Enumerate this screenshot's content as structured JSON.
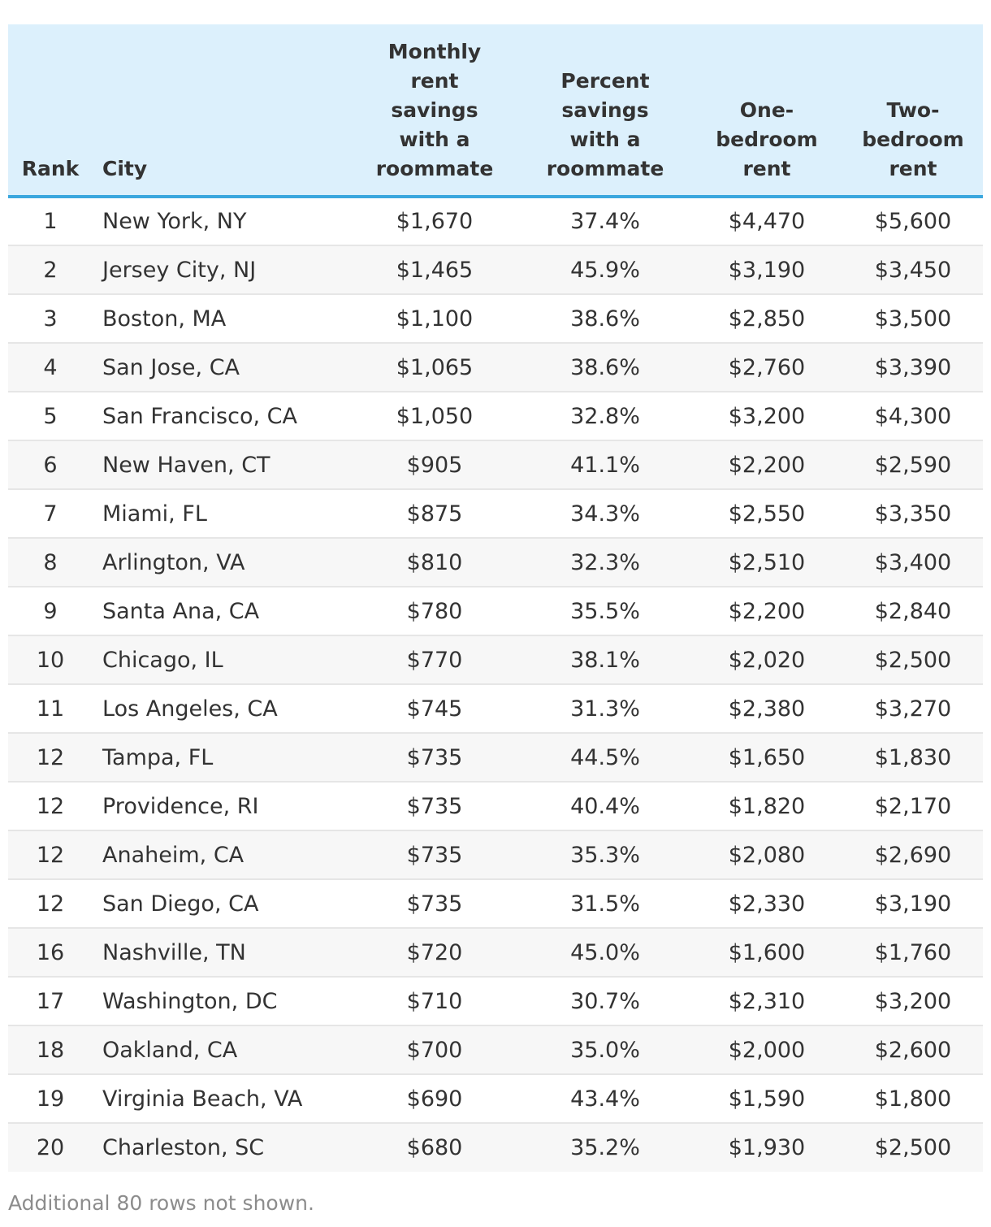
{
  "chart_data": {
    "type": "table",
    "columns": [
      "Rank",
      "City",
      "Monthly rent savings with a roommate",
      "Percent savings with a roommate",
      "One-bedroom rent",
      "Two-bedroom rent"
    ],
    "rows": [
      [
        "1",
        "New York, NY",
        "$1,670",
        "37.4%",
        "$4,470",
        "$5,600"
      ],
      [
        "2",
        "Jersey City, NJ",
        "$1,465",
        "45.9%",
        "$3,190",
        "$3,450"
      ],
      [
        "3",
        "Boston, MA",
        "$1,100",
        "38.6%",
        "$2,850",
        "$3,500"
      ],
      [
        "4",
        "San Jose, CA",
        "$1,065",
        "38.6%",
        "$2,760",
        "$3,390"
      ],
      [
        "5",
        "San Francisco, CA",
        "$1,050",
        "32.8%",
        "$3,200",
        "$4,300"
      ],
      [
        "6",
        "New Haven, CT",
        "$905",
        "41.1%",
        "$2,200",
        "$2,590"
      ],
      [
        "7",
        "Miami, FL",
        "$875",
        "34.3%",
        "$2,550",
        "$3,350"
      ],
      [
        "8",
        "Arlington, VA",
        "$810",
        "32.3%",
        "$2,510",
        "$3,400"
      ],
      [
        "9",
        "Santa Ana, CA",
        "$780",
        "35.5%",
        "$2,200",
        "$2,840"
      ],
      [
        "10",
        "Chicago, IL",
        "$770",
        "38.1%",
        "$2,020",
        "$2,500"
      ],
      [
        "11",
        "Los Angeles, CA",
        "$745",
        "31.3%",
        "$2,380",
        "$3,270"
      ],
      [
        "12",
        "Tampa, FL",
        "$735",
        "44.5%",
        "$1,650",
        "$1,830"
      ],
      [
        "12",
        "Providence, RI",
        "$735",
        "40.4%",
        "$1,820",
        "$2,170"
      ],
      [
        "12",
        "Anaheim, CA",
        "$735",
        "35.3%",
        "$2,080",
        "$2,690"
      ],
      [
        "12",
        "San Diego, CA",
        "$735",
        "31.5%",
        "$2,330",
        "$3,190"
      ],
      [
        "16",
        "Nashville, TN",
        "$720",
        "45.0%",
        "$1,600",
        "$1,760"
      ],
      [
        "17",
        "Washington, DC",
        "$710",
        "30.7%",
        "$2,310",
        "$3,200"
      ],
      [
        "18",
        "Oakland, CA",
        "$700",
        "35.0%",
        "$2,000",
        "$2,600"
      ],
      [
        "19",
        "Virginia Beach, VA",
        "$690",
        "43.4%",
        "$1,590",
        "$1,800"
      ],
      [
        "20",
        "Charleston, SC",
        "$680",
        "35.2%",
        "$1,930",
        "$2,500"
      ]
    ]
  },
  "header": {
    "rank": "Rank",
    "city": "City",
    "savings": [
      "Monthly",
      "rent",
      "savings",
      "with a",
      "roommate"
    ],
    "percent": [
      "Percent",
      "savings",
      "with a",
      "roommate"
    ],
    "one_bed": [
      "One-",
      "bedroom",
      "rent"
    ],
    "two_bed": [
      "Two-",
      "bedroom",
      "rent"
    ]
  },
  "colors": {
    "header_bg": "#dcf0fc",
    "header_rule": "#3aa7de",
    "row_alt": "#f7f7f7"
  },
  "footnote": "Additional 80 rows not shown."
}
